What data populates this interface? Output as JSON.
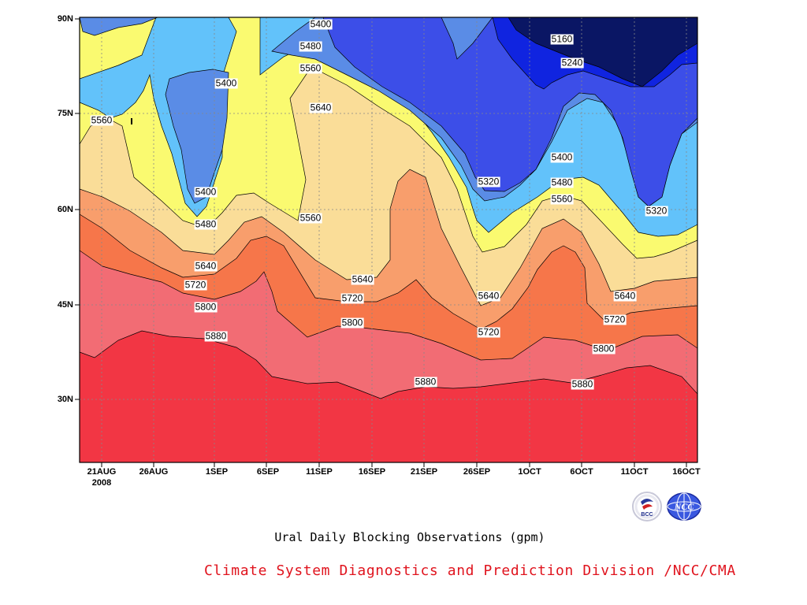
{
  "chart_data": {
    "type": "heatmap",
    "title": "Ural Daily Blocking Observations (gpm)",
    "xlabel": "",
    "ylabel": "",
    "x_ticks": [
      "21AUG",
      "26AUG",
      "1SEP",
      "6SEP",
      "11SEP",
      "16SEP",
      "21SEP",
      "26SEP",
      "1OCT",
      "6OCT",
      "11OCT",
      "16OCT"
    ],
    "x_sub": "2008",
    "y_ticks": [
      "90N",
      "75N",
      "60N",
      "45N",
      "30N"
    ],
    "xlim": [
      "20AUG2008",
      "16OCT2008"
    ],
    "ylim": [
      20,
      90
    ],
    "contour_levels": [
      5160,
      5240,
      5320,
      5400,
      5480,
      5560,
      5640,
      5720,
      5800,
      5880
    ],
    "contour_labels": [
      "5400",
      "5480",
      "5560",
      "5160",
      "5240",
      "5400",
      "5560",
      "5640",
      "5400",
      "5320",
      "5400",
      "5480",
      "5560",
      "5480",
      "5560",
      "5320",
      "5640",
      "5640",
      "5720",
      "5720",
      "5800",
      "5800",
      "5640",
      "5720",
      "5640",
      "5720",
      "5800",
      "5880",
      "5880",
      "5880"
    ],
    "colors": [
      "#0a1664",
      "#1024e0",
      "#3c4ee8",
      "#5a8ce6",
      "#62c2fa",
      "#fafa70",
      "#fadd98",
      "#f89e6c",
      "#f6764a",
      "#f26c74",
      "#f23644"
    ]
  },
  "footer": {
    "credit": "Climate System Diagnostics and Prediction Division /NCC/CMA",
    "logo_left_text": "BCC",
    "logo_right_text": "NCC"
  }
}
